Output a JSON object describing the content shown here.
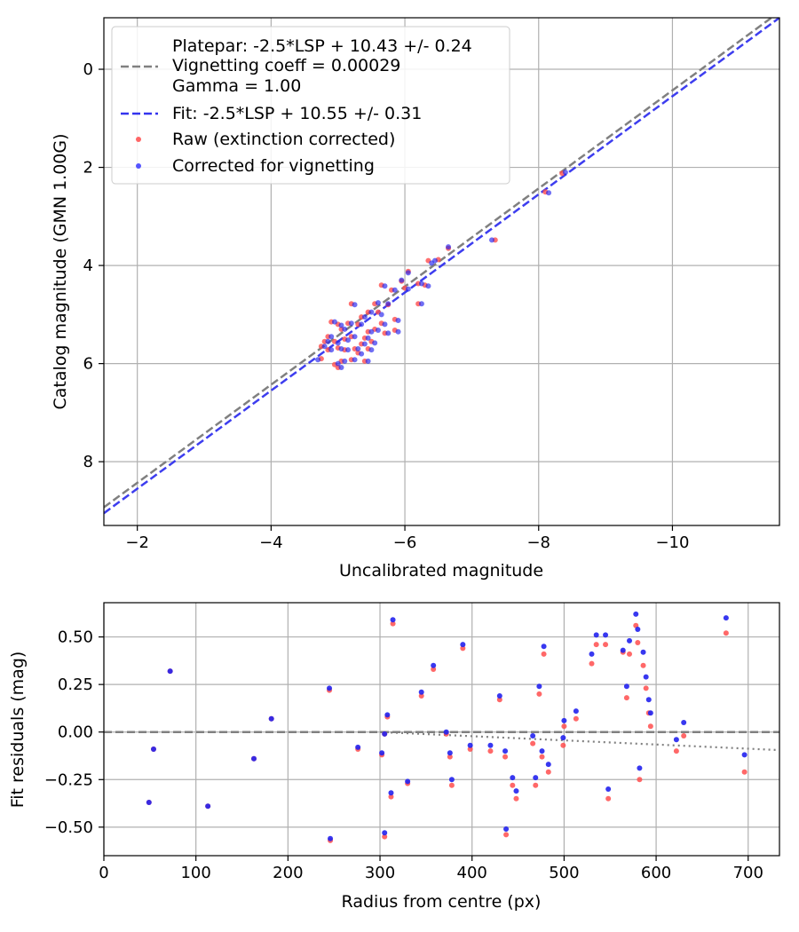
{
  "colors": {
    "gray": "#808080",
    "blue": "#3333ee",
    "raw": "#ff4d4d",
    "corrected": "#2222ee",
    "grid": "#b0b0b0",
    "rawTop": "#ff6666",
    "correctedTop": "#5555ff"
  },
  "chart_data": [
    {
      "type": "scatter",
      "xlabel": "Uncalibrated magnitude",
      "ylabel": "Catalog magnitude (GMN 1.00G)",
      "xlim": [
        -1.5,
        -11.6
      ],
      "ylim": [
        9.3,
        -1.05
      ],
      "xticks": [
        -2,
        -4,
        -6,
        -8,
        -10
      ],
      "xtick_labels": [
        "−2",
        "−4",
        "−6",
        "−8",
        "−10"
      ],
      "yticks": [
        0,
        2,
        4,
        6,
        8
      ],
      "ytick_labels": [
        "0",
        "2",
        "4",
        "6",
        "8"
      ],
      "grid": true,
      "legend": {
        "location": "upper left",
        "platepar_lines": [
          "Platepar: -2.5*LSP + 10.43 +/- 0.24",
          "Vignetting coeff = 0.00029",
          "Gamma = 1.00"
        ],
        "fit_label": "Fit: -2.5*LSP + 10.55 +/- 0.31",
        "raw_label": "Raw (extinction corrected)",
        "corrected_label": "Corrected for vignetting"
      },
      "lines": [
        {
          "name": "Platepar",
          "style": "dashed",
          "color": "gray",
          "intercept": 10.43,
          "slope": 1
        },
        {
          "name": "Fit",
          "style": "dashed",
          "color": "blue",
          "intercept": 10.55,
          "slope": 1
        }
      ],
      "series": [
        {
          "name": "Raw (extinction corrected)",
          "points": [
            [
              -8.1,
              2.5
            ],
            [
              -8.35,
              2.12
            ],
            [
              -7.35,
              3.48
            ],
            [
              -6.65,
              3.65
            ],
            [
              -6.5,
              3.88
            ],
            [
              -6.35,
              3.9
            ],
            [
              -6.05,
              4.12
            ],
            [
              -6.2,
              4.37
            ],
            [
              -6.3,
              4.4
            ],
            [
              -5.95,
              4.32
            ],
            [
              -6.0,
              4.46
            ],
            [
              -5.65,
              4.4
            ],
            [
              -5.8,
              4.5
            ],
            [
              -6.2,
              4.78
            ],
            [
              -5.55,
              4.78
            ],
            [
              -5.75,
              4.8
            ],
            [
              -5.2,
              4.78
            ],
            [
              -5.45,
              4.95
            ],
            [
              -5.6,
              4.95
            ],
            [
              -5.35,
              5.05
            ],
            [
              -5.85,
              5.1
            ],
            [
              -5.65,
              5.18
            ],
            [
              -5.85,
              5.32
            ],
            [
              -5.7,
              5.38
            ],
            [
              -5.45,
              5.35
            ],
            [
              -5.3,
              5.2
            ],
            [
              -5.15,
              5.18
            ],
            [
              -5.0,
              5.2
            ],
            [
              -4.9,
              5.15
            ],
            [
              -5.05,
              5.3
            ],
            [
              -5.4,
              5.48
            ],
            [
              -5.5,
              5.55
            ],
            [
              -5.35,
              5.6
            ],
            [
              -5.2,
              5.45
            ],
            [
              -5.1,
              5.5
            ],
            [
              -4.85,
              5.45
            ],
            [
              -4.95,
              5.55
            ],
            [
              -4.75,
              5.65
            ],
            [
              -4.85,
              5.72
            ],
            [
              -5.0,
              5.68
            ],
            [
              -5.1,
              5.72
            ],
            [
              -5.25,
              5.7
            ],
            [
              -5.45,
              5.7
            ],
            [
              -5.3,
              5.78
            ],
            [
              -5.4,
              5.95
            ],
            [
              -5.2,
              5.92
            ],
            [
              -5.05,
              5.95
            ],
            [
              -4.95,
              6.02
            ],
            [
              -5.0,
              6.08
            ],
            [
              -4.75,
              5.9
            ],
            [
              -4.8,
              5.55
            ],
            [
              -5.55,
              5.3
            ]
          ]
        },
        {
          "name": "Corrected for vignetting",
          "points": [
            [
              -8.15,
              2.52
            ],
            [
              -8.4,
              2.1
            ],
            [
              -7.3,
              3.48
            ],
            [
              -6.65,
              3.62
            ],
            [
              -6.45,
              3.9
            ],
            [
              -6.4,
              3.95
            ],
            [
              -6.05,
              4.15
            ],
            [
              -6.25,
              4.37
            ],
            [
              -6.35,
              4.42
            ],
            [
              -5.95,
              4.3
            ],
            [
              -6.05,
              4.48
            ],
            [
              -5.7,
              4.42
            ],
            [
              -5.85,
              4.5
            ],
            [
              -6.25,
              4.78
            ],
            [
              -5.6,
              4.76
            ],
            [
              -5.75,
              4.78
            ],
            [
              -5.25,
              4.8
            ],
            [
              -5.5,
              4.95
            ],
            [
              -5.65,
              5.0
            ],
            [
              -5.4,
              5.05
            ],
            [
              -5.9,
              5.12
            ],
            [
              -5.7,
              5.2
            ],
            [
              -5.9,
              5.35
            ],
            [
              -5.75,
              5.38
            ],
            [
              -5.5,
              5.35
            ],
            [
              -5.35,
              5.2
            ],
            [
              -5.2,
              5.18
            ],
            [
              -5.05,
              5.22
            ],
            [
              -4.95,
              5.15
            ],
            [
              -5.1,
              5.3
            ],
            [
              -5.45,
              5.48
            ],
            [
              -5.55,
              5.58
            ],
            [
              -5.4,
              5.6
            ],
            [
              -5.25,
              5.45
            ],
            [
              -5.15,
              5.52
            ],
            [
              -4.9,
              5.45
            ],
            [
              -5.0,
              5.58
            ],
            [
              -4.8,
              5.65
            ],
            [
              -4.9,
              5.72
            ],
            [
              -5.05,
              5.7
            ],
            [
              -5.15,
              5.72
            ],
            [
              -5.3,
              5.7
            ],
            [
              -5.5,
              5.72
            ],
            [
              -5.35,
              5.8
            ],
            [
              -5.45,
              5.95
            ],
            [
              -5.25,
              5.92
            ],
            [
              -5.1,
              5.95
            ],
            [
              -5.0,
              6.0
            ],
            [
              -5.05,
              6.08
            ],
            [
              -4.7,
              5.92
            ],
            [
              -4.85,
              5.55
            ],
            [
              -5.6,
              5.32
            ]
          ]
        }
      ]
    },
    {
      "type": "scatter",
      "xlabel": "Radius from centre (px)",
      "ylabel": "Fit residuals (mag)",
      "xlim": [
        0,
        734
      ],
      "ylim": [
        -0.65,
        0.68
      ],
      "xticks": [
        0,
        100,
        200,
        300,
        400,
        500,
        600,
        700
      ],
      "xtick_labels": [
        "0",
        "100",
        "200",
        "300",
        "400",
        "500",
        "600",
        "700"
      ],
      "yticks": [
        0.5,
        0.25,
        0.0,
        -0.25,
        -0.5
      ],
      "ytick_labels": [
        "0.50",
        "0.25",
        "0.00",
        "−0.25",
        "−0.50"
      ],
      "grid": true,
      "lines": [
        {
          "name": "zero",
          "style": "dashed",
          "color": "gray",
          "points": [
            [
              0,
              0
            ],
            [
              734,
              0
            ]
          ]
        },
        {
          "name": "vignetting",
          "style": "dotted",
          "color": "gray",
          "points": [
            [
              300,
              0.0
            ],
            [
              734,
              -0.095
            ]
          ]
        }
      ],
      "series": [
        {
          "name": "Raw (extinction corrected)",
          "points": [
            [
              49,
              -0.37
            ],
            [
              54,
              -0.09
            ],
            [
              72,
              0.32
            ],
            [
              113,
              -0.39
            ],
            [
              163,
              -0.14
            ],
            [
              182,
              0.07
            ],
            [
              245,
              0.22
            ],
            [
              246,
              -0.57
            ],
            [
              276,
              -0.09
            ],
            [
              302,
              -0.12
            ],
            [
              305,
              -0.01
            ],
            [
              305,
              -0.55
            ],
            [
              308,
              0.08
            ],
            [
              312,
              -0.34
            ],
            [
              314,
              0.57
            ],
            [
              330,
              -0.27
            ],
            [
              345,
              0.19
            ],
            [
              358,
              0.33
            ],
            [
              372,
              -0.01
            ],
            [
              376,
              -0.13
            ],
            [
              378,
              -0.28
            ],
            [
              390,
              0.44
            ],
            [
              398,
              -0.09
            ],
            [
              420,
              -0.1
            ],
            [
              430,
              0.17
            ],
            [
              436,
              -0.13
            ],
            [
              437,
              -0.54
            ],
            [
              444,
              -0.28
            ],
            [
              448,
              -0.35
            ],
            [
              466,
              -0.06
            ],
            [
              469,
              -0.28
            ],
            [
              473,
              0.2
            ],
            [
              476,
              -0.13
            ],
            [
              478,
              0.41
            ],
            [
              483,
              -0.21
            ],
            [
              499,
              -0.07
            ],
            [
              500,
              0.03
            ],
            [
              513,
              0.07
            ],
            [
              530,
              0.36
            ],
            [
              535,
              0.46
            ],
            [
              545,
              0.46
            ],
            [
              548,
              -0.35
            ],
            [
              564,
              0.42
            ],
            [
              568,
              0.18
            ],
            [
              571,
              0.41
            ],
            [
              578,
              0.56
            ],
            [
              580,
              0.47
            ],
            [
              582,
              -0.25
            ],
            [
              586,
              0.35
            ],
            [
              589,
              0.23
            ],
            [
              592,
              0.1
            ],
            [
              594,
              0.03
            ],
            [
              622,
              -0.1
            ],
            [
              630,
              -0.02
            ],
            [
              676,
              0.52
            ],
            [
              696,
              -0.21
            ]
          ]
        },
        {
          "name": "Corrected for vignetting",
          "points": [
            [
              49,
              -0.37
            ],
            [
              54,
              -0.09
            ],
            [
              72,
              0.32
            ],
            [
              113,
              -0.39
            ],
            [
              163,
              -0.14
            ],
            [
              182,
              0.07
            ],
            [
              245,
              0.23
            ],
            [
              246,
              -0.56
            ],
            [
              276,
              -0.08
            ],
            [
              302,
              -0.11
            ],
            [
              305,
              -0.01
            ],
            [
              305,
              -0.53
            ],
            [
              308,
              0.09
            ],
            [
              312,
              -0.32
            ],
            [
              314,
              0.59
            ],
            [
              330,
              -0.26
            ],
            [
              345,
              0.21
            ],
            [
              358,
              0.35
            ],
            [
              372,
              0.0
            ],
            [
              376,
              -0.11
            ],
            [
              378,
              -0.25
            ],
            [
              390,
              0.46
            ],
            [
              398,
              -0.07
            ],
            [
              420,
              -0.07
            ],
            [
              430,
              0.19
            ],
            [
              436,
              -0.1
            ],
            [
              437,
              -0.51
            ],
            [
              444,
              -0.24
            ],
            [
              448,
              -0.31
            ],
            [
              466,
              -0.02
            ],
            [
              469,
              -0.24
            ],
            [
              473,
              0.24
            ],
            [
              476,
              -0.1
            ],
            [
              478,
              0.45
            ],
            [
              483,
              -0.17
            ],
            [
              499,
              -0.03
            ],
            [
              500,
              0.06
            ],
            [
              513,
              0.11
            ],
            [
              530,
              0.41
            ],
            [
              535,
              0.51
            ],
            [
              545,
              0.51
            ],
            [
              548,
              -0.3
            ],
            [
              564,
              0.43
            ],
            [
              568,
              0.24
            ],
            [
              571,
              0.48
            ],
            [
              578,
              0.62
            ],
            [
              580,
              0.54
            ],
            [
              582,
              -0.19
            ],
            [
              586,
              0.42
            ],
            [
              589,
              0.29
            ],
            [
              592,
              0.17
            ],
            [
              594,
              0.1
            ],
            [
              622,
              -0.04
            ],
            [
              630,
              0.05
            ],
            [
              676,
              0.6
            ],
            [
              696,
              -0.12
            ]
          ]
        }
      ]
    }
  ]
}
